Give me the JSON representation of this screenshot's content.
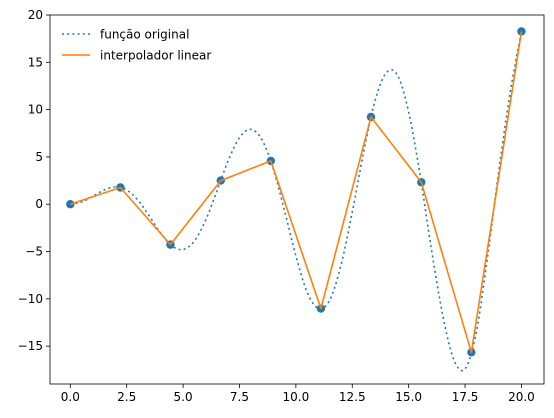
{
  "chart_data": {
    "type": "line",
    "title": "",
    "xlabel": "",
    "ylabel": "",
    "xlim": [
      -0.9,
      21.0
    ],
    "ylim": [
      -19.0,
      20.0
    ],
    "x_ticks": [
      0.0,
      2.5,
      5.0,
      7.5,
      10.0,
      12.5,
      15.0,
      17.5,
      20.0
    ],
    "x_tick_labels": [
      "0.0",
      "2.5",
      "5.0",
      "7.5",
      "10.0",
      "12.5",
      "15.0",
      "17.5",
      "20.0"
    ],
    "y_ticks": [
      -15,
      -10,
      -5,
      0,
      5,
      10,
      15,
      20
    ],
    "y_tick_labels": [
      "−15",
      "−10",
      "−5",
      "0",
      "5",
      "10",
      "15",
      "20"
    ],
    "grid": false,
    "legend_position": "upper-left",
    "series": [
      {
        "name": "função original",
        "style": "dotted",
        "color": "#1f77b4",
        "x": [
          0.0,
          0.5,
          1.0,
          1.5,
          2.0,
          2.5,
          3.0,
          3.5,
          4.0,
          4.5,
          5.0,
          5.5,
          6.0,
          6.5,
          7.0,
          7.5,
          8.0,
          8.5,
          9.0,
          9.5,
          10.0,
          10.5,
          11.0,
          11.5,
          12.0,
          12.5,
          13.0,
          13.5,
          14.0,
          14.5,
          15.0,
          15.5,
          16.0,
          16.5,
          17.0,
          17.5,
          18.0,
          18.5,
          19.0,
          19.5,
          20.0
        ],
        "y": [
          0.0,
          0.24,
          0.84,
          1.5,
          1.82,
          1.5,
          0.42,
          -1.23,
          -3.03,
          -4.4,
          -4.79,
          -3.89,
          -1.68,
          1.4,
          4.6,
          7.04,
          7.91,
          6.8,
          3.71,
          -0.71,
          -5.44,
          -9.3,
          -11.0,
          -10.14,
          -6.44,
          -0.83,
          5.46,
          10.85,
          13.87,
          13.66,
          9.75,
          3.16,
          -4.61,
          -11.58,
          -16.42,
          -17.4,
          -13.5,
          -5.5,
          3.6,
          11.8,
          18.26
        ]
      },
      {
        "name": "interpolador linear",
        "style": "solid",
        "color": "#ff7f0e",
        "x": [
          0.0,
          2.22,
          4.44,
          6.67,
          8.89,
          11.11,
          13.33,
          15.56,
          17.78,
          20.0
        ],
        "y": [
          0.0,
          1.77,
          -4.27,
          2.5,
          4.58,
          -11.03,
          9.22,
          2.32,
          -15.65,
          18.26
        ]
      }
    ],
    "points": {
      "color": "#1f77b4",
      "x": [
        0.0,
        2.22,
        4.44,
        6.67,
        8.89,
        11.11,
        13.33,
        15.56,
        17.78,
        20.0
      ],
      "y": [
        0.0,
        1.77,
        -4.27,
        2.5,
        4.58,
        -11.03,
        9.22,
        2.32,
        -15.65,
        18.26
      ]
    }
  }
}
